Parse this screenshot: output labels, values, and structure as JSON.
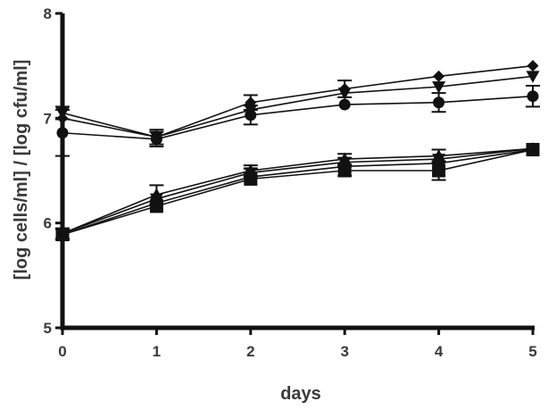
{
  "chart_data": {
    "type": "line",
    "title": "",
    "xlabel": "days",
    "ylabel": "[log cells/ml] / [log cfu/ml]",
    "xlim": [
      0,
      5
    ],
    "ylim": [
      5,
      8
    ],
    "x_ticks": [
      "0",
      "1",
      "2",
      "3",
      "4",
      "5"
    ],
    "y_ticks": [
      "5",
      "6",
      "7",
      "8"
    ],
    "grid": false,
    "legend": "none",
    "x": [
      0,
      1,
      2,
      3,
      4,
      5
    ],
    "series": [
      {
        "marker": "diamond",
        "values": [
          7.0,
          6.82,
          7.15,
          7.28,
          7.4,
          7.5
        ],
        "err": [
          0.0,
          0.07,
          0.07,
          0.08,
          0.0,
          0.0
        ]
      },
      {
        "marker": "circle",
        "values": [
          6.86,
          6.8,
          7.03,
          7.13,
          7.15,
          7.21
        ],
        "err": [
          0.22,
          0.07,
          0.09,
          0.0,
          0.09,
          0.1
        ]
      },
      {
        "marker": "triangle-down",
        "values": [
          7.05,
          6.82,
          7.08,
          7.24,
          7.3,
          7.4
        ],
        "err": [
          0.06,
          0.0,
          0.0,
          0.0,
          0.0,
          0.0
        ]
      },
      {
        "marker": "triangle-up",
        "values": [
          5.9,
          6.27,
          6.5,
          6.61,
          6.64,
          6.71
        ],
        "err": [
          0.05,
          0.09,
          0.05,
          0.05,
          0.06,
          0.0
        ]
      },
      {
        "marker": "triangle-down",
        "values": [
          5.9,
          6.23,
          6.48,
          6.58,
          6.61,
          6.71
        ],
        "err": [
          0.0,
          0.0,
          0.04,
          0.04,
          0.0,
          0.0
        ]
      },
      {
        "marker": "circle",
        "values": [
          5.89,
          6.19,
          6.44,
          6.54,
          6.57,
          6.7
        ],
        "err": [
          0.0,
          0.0,
          0.0,
          0.0,
          0.0,
          0.0
        ]
      },
      {
        "marker": "square",
        "values": [
          5.89,
          6.16,
          6.42,
          6.5,
          6.5,
          6.7
        ],
        "err": [
          0.05,
          0.0,
          0.0,
          0.05,
          0.09,
          0.0
        ]
      }
    ]
  },
  "colors": {
    "ink": "#111111",
    "text": "#3a3a3a",
    "background": "#ffffff"
  }
}
